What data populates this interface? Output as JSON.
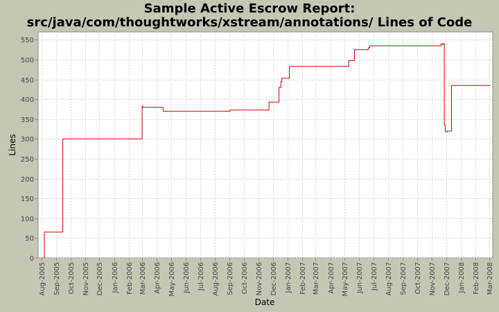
{
  "chart_data": {
    "type": "line",
    "title": "Sample Active Escrow Report:",
    "subtitle": "src/java/com/thoughtworks/xstream/annotations/ Lines of Code",
    "xlabel": "Date",
    "ylabel": "Lines",
    "ylim": [
      0,
      570
    ],
    "y_ticks": [
      0,
      50,
      100,
      150,
      200,
      250,
      300,
      350,
      400,
      450,
      500,
      550
    ],
    "x_range": [
      "2005-07-25",
      "2008-03-08"
    ],
    "x_tick_labels": [
      "Aug-2005",
      "Sep-2005",
      "Oct-2005",
      "Nov-2005",
      "Dec-2005",
      "Jan-2006",
      "Feb-2006",
      "Mar-2006",
      "Apr-2006",
      "May-2006",
      "Jun-2006",
      "Jul-2006",
      "Aug-2006",
      "Sep-2006",
      "Oct-2006",
      "Nov-2006",
      "Dec-2006",
      "Jan-2007",
      "Feb-2007",
      "Mar-2007",
      "Apr-2007",
      "May-2007",
      "Jun-2007",
      "Jul-2007",
      "Aug-2007",
      "Sep-2007",
      "Oct-2007",
      "Nov-2007",
      "Dec-2007",
      "Jan-2008",
      "Feb-2008",
      "Mar-2008"
    ],
    "grid": true,
    "line_style": "step",
    "series": [
      {
        "color": "#cc0000",
        "points": [
          {
            "x": "2005-08-06",
            "y": 0
          },
          {
            "x": "2005-08-07",
            "y": 65
          },
          {
            "x": "2005-09-15",
            "y": 300
          },
          {
            "x": "2006-03-01",
            "y": 383
          },
          {
            "x": "2006-03-02",
            "y": 380
          },
          {
            "x": "2006-04-14",
            "y": 370
          },
          {
            "x": "2006-09-02",
            "y": 373
          },
          {
            "x": "2006-11-23",
            "y": 393
          },
          {
            "x": "2006-12-14",
            "y": 430
          },
          {
            "x": "2006-12-18",
            "y": 445
          },
          {
            "x": "2006-12-20",
            "y": 453
          },
          {
            "x": "2007-01-05",
            "y": 483
          },
          {
            "x": "2007-05-10",
            "y": 498
          },
          {
            "x": "2007-05-22",
            "y": 525
          },
          {
            "x": "2007-06-20",
            "y": 530
          },
          {
            "x": "2007-06-23",
            "y": 535
          },
          {
            "x": "2007-11-20",
            "y": 540
          },
          {
            "x": "2007-11-23",
            "y": 538
          },
          {
            "x": "2007-11-25",
            "y": 540
          },
          {
            "x": "2007-11-27",
            "y": 335
          },
          {
            "x": "2007-11-29",
            "y": 318
          },
          {
            "x": "2007-12-03",
            "y": 320
          },
          {
            "x": "2007-12-12",
            "y": 435
          },
          {
            "x": "2008-03-03",
            "y": 435
          }
        ]
      }
    ]
  }
}
